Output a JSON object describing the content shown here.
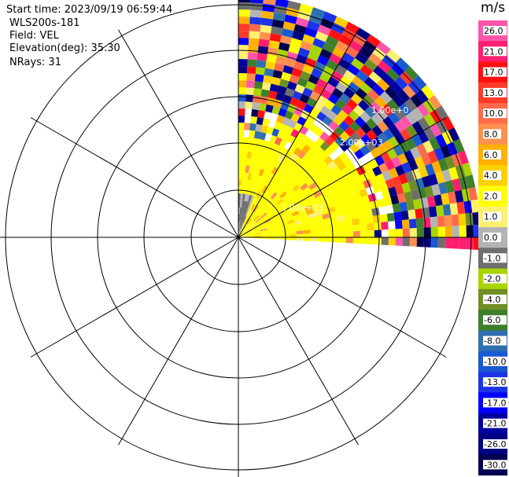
{
  "header": {
    "start_time": "Start time: 2023/09/19 06:59:44",
    "instrument": "WLS200s-181",
    "field": "Field: VEL",
    "elevation": "Elevation(deg): 35.30",
    "nrays": "NRays: 31"
  },
  "colorbar": {
    "unit": "m/s",
    "labels": [
      "26.0",
      "21.0",
      "17.0",
      "13.0",
      "10.0",
      "8.0",
      "6.0",
      "4.0",
      "2.0",
      "1.0",
      "0.0",
      "-1.0",
      "-2.0",
      "-4.0",
      "-6.0",
      "-8.0",
      "-10.0",
      "-13.0",
      "-17.0",
      "-21.0",
      "-26.0",
      "-30.0"
    ],
    "colors": [
      "#ff55aa",
      "#ff1e70",
      "#ff1010",
      "#ff3a2a",
      "#ff6a4a",
      "#ff9050",
      "#ffb000",
      "#ffd000",
      "#ffff00",
      "#fff070",
      "#b4b4b4",
      "#6e6e6e",
      "#a8d400",
      "#6f8f25",
      "#3d7f2a",
      "#2f6faf",
      "#1a5ad0",
      "#1c34e8",
      "#0000ff",
      "#0000a0",
      "#000080",
      "#000050"
    ]
  },
  "chart_data": {
    "type": "polar",
    "field": "VEL",
    "units": "m/s",
    "elevation_deg": 35.3,
    "n_rays": 31,
    "azimuth_range_deg": [
      0,
      93
    ],
    "ring_labels": [
      "1.00e+03",
      "2.00e+03",
      "1.00e+0"
    ],
    "sector_summary": [
      {
        "range_band": "near (< ring 2)",
        "dominant_value_mps": 2.0,
        "note": "yellow, with grey 0.0 / -1.0 close to the origin"
      },
      {
        "range_band": "middle (ring 2 to ring 3)",
        "dominant_value_mps": 2.0,
        "note": "yellow with scattered positive values"
      },
      {
        "range_band": "far (> ring 3)",
        "dominant_value_mps": null,
        "note": "noisy values across the full -30 to 26 scale"
      }
    ]
  }
}
